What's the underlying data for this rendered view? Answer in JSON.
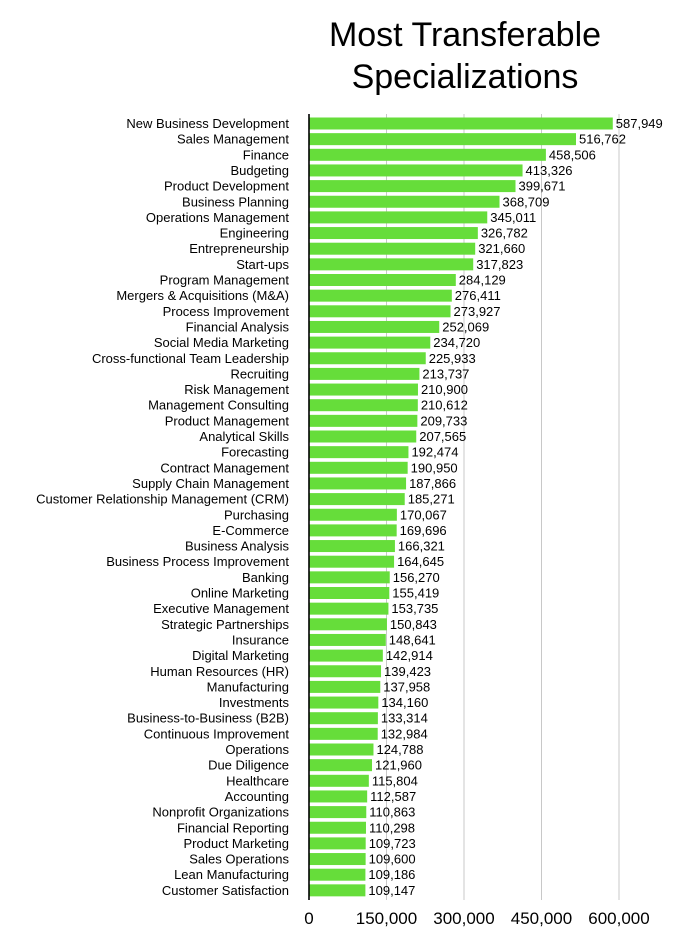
{
  "chart_data": {
    "type": "bar",
    "orientation": "horizontal",
    "title_lines": [
      "Most Transferable",
      "Specializations"
    ],
    "xlabel": "",
    "ylabel": "",
    "xlim": [
      0,
      650000
    ],
    "xticks": [
      0,
      150000,
      300000,
      450000,
      600000
    ],
    "xtick_labels": [
      "0",
      "150,000",
      "300,000",
      "450,000",
      "600,000"
    ],
    "grid": true,
    "legend": "none",
    "bar_color": "#66dd3a",
    "categories": [
      "New Business Development",
      "Sales Management",
      "Finance",
      "Budgeting",
      "Product Development",
      "Business Planning",
      "Operations Management",
      "Engineering",
      "Entrepreneurship",
      "Start-ups",
      "Program Management",
      "Mergers & Acquisitions (M&A)",
      "Process Improvement",
      "Financial Analysis",
      "Social Media Marketing",
      "Cross-functional Team Leadership",
      "Recruiting",
      "Risk Management",
      "Management Consulting",
      "Product Management",
      "Analytical Skills",
      "Forecasting",
      "Contract Management",
      "Supply Chain Management",
      "Customer Relationship Management (CRM)",
      "Purchasing",
      "E-Commerce",
      "Business Analysis",
      "Business Process Improvement",
      "Banking",
      "Online Marketing",
      "Executive Management",
      "Strategic Partnerships",
      "Insurance",
      "Digital Marketing",
      "Human Resources (HR)",
      "Manufacturing",
      "Investments",
      "Business-to-Business (B2B)",
      "Continuous Improvement",
      "Operations",
      "Due Diligence",
      "Healthcare",
      "Accounting",
      "Nonprofit Organizations",
      "Financial Reporting",
      "Product Marketing",
      "Sales Operations",
      "Lean Manufacturing",
      "Customer Satisfaction"
    ],
    "values": [
      587949,
      516762,
      458506,
      413326,
      399671,
      368709,
      345011,
      326782,
      321660,
      317823,
      284129,
      276411,
      273927,
      252069,
      234720,
      225933,
      213737,
      210900,
      210612,
      209733,
      207565,
      192474,
      190950,
      187866,
      185271,
      170067,
      169696,
      166321,
      164645,
      156270,
      155419,
      153735,
      150843,
      148641,
      142914,
      139423,
      137958,
      134160,
      133314,
      132984,
      124788,
      121960,
      115804,
      112587,
      110863,
      110298,
      109723,
      109600,
      109186,
      109147
    ],
    "value_labels": [
      "587,949",
      "516,762",
      "458,506",
      "413,326",
      "399,671",
      "368,709",
      "345,011",
      "326,782",
      "321,660",
      "317,823",
      "284,129",
      "276,411",
      "273,927",
      "252,069",
      "234,720",
      "225,933",
      "213,737",
      "210,900",
      "210,612",
      "209,733",
      "207,565",
      "192,474",
      "190,950",
      "187,866",
      "185,271",
      "170,067",
      "169,696",
      "166,321",
      "164,645",
      "156,270",
      "155,419",
      "153,735",
      "150,843",
      "148,641",
      "142,914",
      "139,423",
      "137,958",
      "134,160",
      "133,314",
      "132,984",
      "124,788",
      "121,960",
      "115,804",
      "112,587",
      "110,863",
      "110,298",
      "109,723",
      "109,600",
      "109,186",
      "109,147"
    ]
  }
}
